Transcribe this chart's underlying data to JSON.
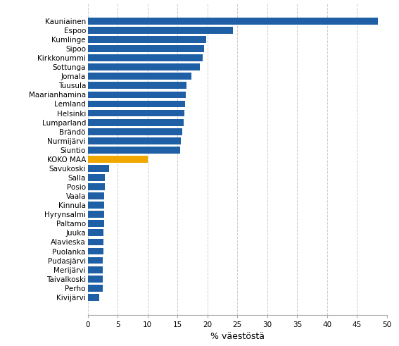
{
  "categories": [
    "Kivijärvi",
    "Perho",
    "Taivalkoski",
    "Merijärvi",
    "Pudasjärvi",
    "Puolanka",
    "Alavieska",
    "Juuka",
    "Paltamo",
    "Hyrynsalmi",
    "Kinnula",
    "Vaala",
    "Posio",
    "Salla",
    "Savukoski",
    "KOKO MAA",
    "Siuntio",
    "Nurmijärvi",
    "Brändö",
    "Lumparland",
    "Helsinki",
    "Lemland",
    "Maarianhamina",
    "Tuusula",
    "Jomala",
    "Sottunga",
    "Kirkkonummi",
    "Sipoo",
    "Kumlinge",
    "Espoo",
    "Kauniainen"
  ],
  "values": [
    1.9,
    2.5,
    2.5,
    2.5,
    2.5,
    2.6,
    2.6,
    2.6,
    2.7,
    2.7,
    2.7,
    2.7,
    2.8,
    2.9,
    3.5,
    10.0,
    15.4,
    15.6,
    15.8,
    16.0,
    16.1,
    16.2,
    16.4,
    16.5,
    17.3,
    18.7,
    19.2,
    19.4,
    19.8,
    24.2,
    48.5
  ],
  "bar_colors_default": "#1F5FA6",
  "bar_color_highlight": "#F0A800",
  "highlight_index": 15,
  "xlabel": "% väestöstä",
  "xlim": [
    0,
    50
  ],
  "xticks": [
    0,
    5,
    10,
    15,
    20,
    25,
    30,
    35,
    40,
    45,
    50
  ],
  "grid_color": "#CCCCCC",
  "background_color": "#FFFFFF",
  "bar_height": 0.75,
  "tick_fontsize": 7.5,
  "xlabel_fontsize": 9
}
